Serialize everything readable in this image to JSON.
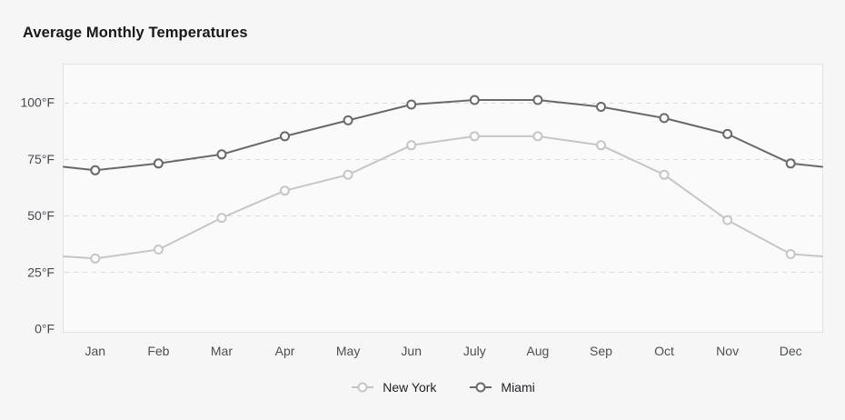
{
  "page": {
    "title": "Average Monthly Temperatures"
  },
  "chart_data": {
    "type": "line",
    "title": "Average Monthly Temperatures",
    "categories": [
      "Jan",
      "Feb",
      "Mar",
      "Apr",
      "May",
      "Jun",
      "July",
      "Aug",
      "Sep",
      "Oct",
      "Nov",
      "Dec"
    ],
    "series": [
      {
        "name": "New York",
        "color": "#c5c6c8",
        "values": [
          31,
          35,
          49,
          61,
          68,
          81,
          85,
          85,
          81,
          68,
          48,
          33
        ]
      },
      {
        "name": "Miami",
        "color": "#69696b",
        "values": [
          70,
          73,
          77,
          85,
          92,
          99,
          101,
          101,
          98,
          93,
          86,
          73
        ]
      }
    ],
    "xlabel": "",
    "ylabel": "",
    "y_ticks": [
      0,
      25,
      50,
      75,
      100
    ],
    "y_grid_ticks": [
      25,
      50,
      75,
      100
    ],
    "y_tick_format": "{v}°F",
    "ylim": [
      0,
      116
    ],
    "grid": "horizontal-dashed",
    "legend_position": "bottom-center",
    "marker": "open-circle",
    "line_edges": "extended-to-plot-edges"
  },
  "colors": {
    "page_bg": "#f6f6f7",
    "plot_bg": "#fafafa",
    "plot_border": "#e3e4e6",
    "gridline": "#dadbdd",
    "marker_fill": "#fcfcfd",
    "tick_text": "#45484d",
    "title_text": "#17181a",
    "legend_text": "#212327"
  }
}
